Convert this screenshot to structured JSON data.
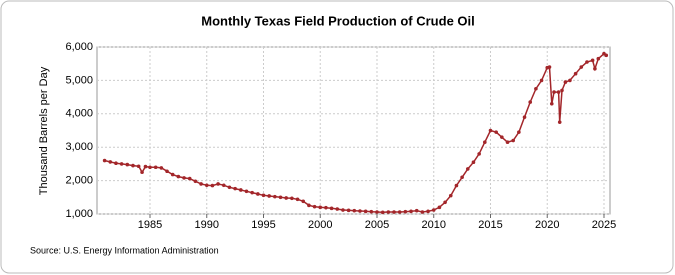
{
  "chart_data": {
    "type": "line",
    "title": "Monthly Texas Field Production of Crude Oil",
    "ylabel": "Thousand Barrels per Day",
    "source": "Source: U.S. Energy Information Administration",
    "x": [
      1981,
      1981.5,
      1982,
      1982.5,
      1983,
      1983.5,
      1984,
      1984.3,
      1984.6,
      1985,
      1985.5,
      1986,
      1986.5,
      1987,
      1987.5,
      1988,
      1988.5,
      1989,
      1989.5,
      1990,
      1990.5,
      1991,
      1991.5,
      1992,
      1992.5,
      1993,
      1993.5,
      1994,
      1994.5,
      1995,
      1995.5,
      1996,
      1996.5,
      1997,
      1997.5,
      1998,
      1998.5,
      1999,
      1999.5,
      2000,
      2000.5,
      2001,
      2001.5,
      2002,
      2002.5,
      2003,
      2003.5,
      2004,
      2004.5,
      2005,
      2005.5,
      2006,
      2006.5,
      2007,
      2007.5,
      2008,
      2008.5,
      2009,
      2009.5,
      2010,
      2010.5,
      2011,
      2011.5,
      2012,
      2012.5,
      2013,
      2013.5,
      2014,
      2014.5,
      2015,
      2015.5,
      2016,
      2016.5,
      2017,
      2017.5,
      2018,
      2018.5,
      2019,
      2019.5,
      2020,
      2020.2,
      2020.4,
      2020.6,
      2021,
      2021.1,
      2021.3,
      2021.6,
      2022,
      2022.5,
      2023,
      2023.5,
      2024,
      2024.2,
      2024.5,
      2025,
      2025.2
    ],
    "series": [
      {
        "name": "Texas",
        "color": "#a3262a",
        "values": [
          2600,
          2560,
          2520,
          2500,
          2480,
          2450,
          2430,
          2250,
          2420,
          2400,
          2400,
          2380,
          2280,
          2180,
          2120,
          2080,
          2060,
          1980,
          1900,
          1860,
          1850,
          1900,
          1860,
          1800,
          1760,
          1720,
          1680,
          1640,
          1600,
          1560,
          1540,
          1520,
          1500,
          1480,
          1470,
          1440,
          1380,
          1260,
          1220,
          1200,
          1190,
          1170,
          1150,
          1120,
          1110,
          1100,
          1090,
          1080,
          1070,
          1060,
          1050,
          1060,
          1060,
          1060,
          1070,
          1080,
          1100,
          1060,
          1080,
          1120,
          1200,
          1350,
          1550,
          1850,
          2100,
          2350,
          2550,
          2800,
          3150,
          3500,
          3450,
          3300,
          3150,
          3200,
          3450,
          3900,
          4350,
          4750,
          5000,
          5380,
          5400,
          4300,
          4650,
          4650,
          3750,
          4700,
          4950,
          5000,
          5200,
          5400,
          5550,
          5600,
          5350,
          5650,
          5800,
          5750
        ]
      }
    ],
    "xlim": [
      1980.33,
      2025.53
    ],
    "xticks": [
      1985,
      1990,
      1995,
      2000,
      2005,
      2010,
      2015,
      2020,
      2025
    ],
    "ylim": [
      1000,
      6000
    ],
    "yticks": [
      {
        "value": 1000,
        "label": "1,000"
      },
      {
        "value": 2000,
        "label": "2,000"
      },
      {
        "value": 3000,
        "label": "3,000"
      },
      {
        "value": 4000,
        "label": "4,000"
      },
      {
        "value": 5000,
        "label": "5,000"
      },
      {
        "value": 6000,
        "label": "6,000"
      }
    ],
    "grid": true
  }
}
